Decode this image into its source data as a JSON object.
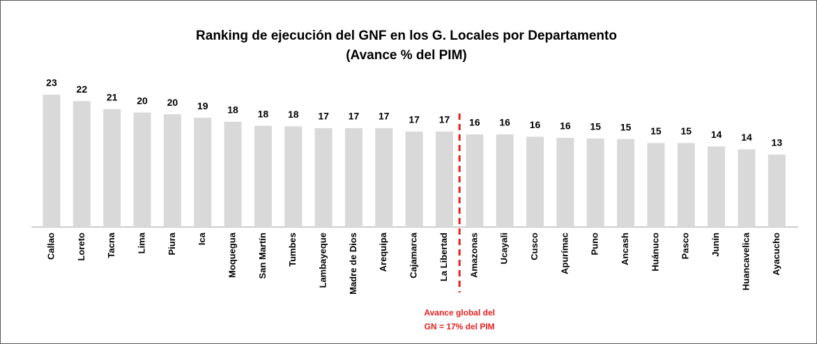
{
  "chart_data": {
    "type": "bar",
    "title": [
      "Ranking de ejecución del GNF en los G. Locales por Departamento",
      "(Avance % del PIM)"
    ],
    "categories": [
      "Callao",
      "Loreto",
      "Tacna",
      "Lima",
      "Piura",
      "Ica",
      "Moquegua",
      "San Martín",
      "Tumbes",
      "Lambayeque",
      "Madre de Dios",
      "Arequipa",
      "Cajamarca",
      "La Libertad",
      "Amazonas",
      "Ucayali",
      "Cusco",
      "Apurímac",
      "Puno",
      "Ancash",
      "Huánuco",
      "Pasco",
      "Junín",
      "Huancavelica",
      "Ayacucho"
    ],
    "values": [
      23.0,
      21.9,
      20.5,
      19.9,
      19.6,
      19.0,
      18.3,
      17.6,
      17.5,
      17.2,
      17.2,
      17.2,
      16.6,
      16.6,
      16.1,
      16.1,
      15.7,
      15.5,
      15.4,
      15.3,
      14.6,
      14.6,
      14.0,
      13.5,
      12.6
    ],
    "value_labels": [
      "23",
      "22",
      "21",
      "20",
      "20",
      "19",
      "18",
      "18",
      "18",
      "17",
      "17",
      "17",
      "17",
      "17",
      "16",
      "16",
      "16",
      "16",
      "15",
      "15",
      "15",
      "15",
      "14",
      "14",
      "13"
    ],
    "color": "#d9d9d9",
    "ylim": [
      0,
      25
    ],
    "annotation": [
      "Avance global del",
      "GN = 17% del PIM"
    ],
    "annotation_color": "#e61e1e"
  }
}
